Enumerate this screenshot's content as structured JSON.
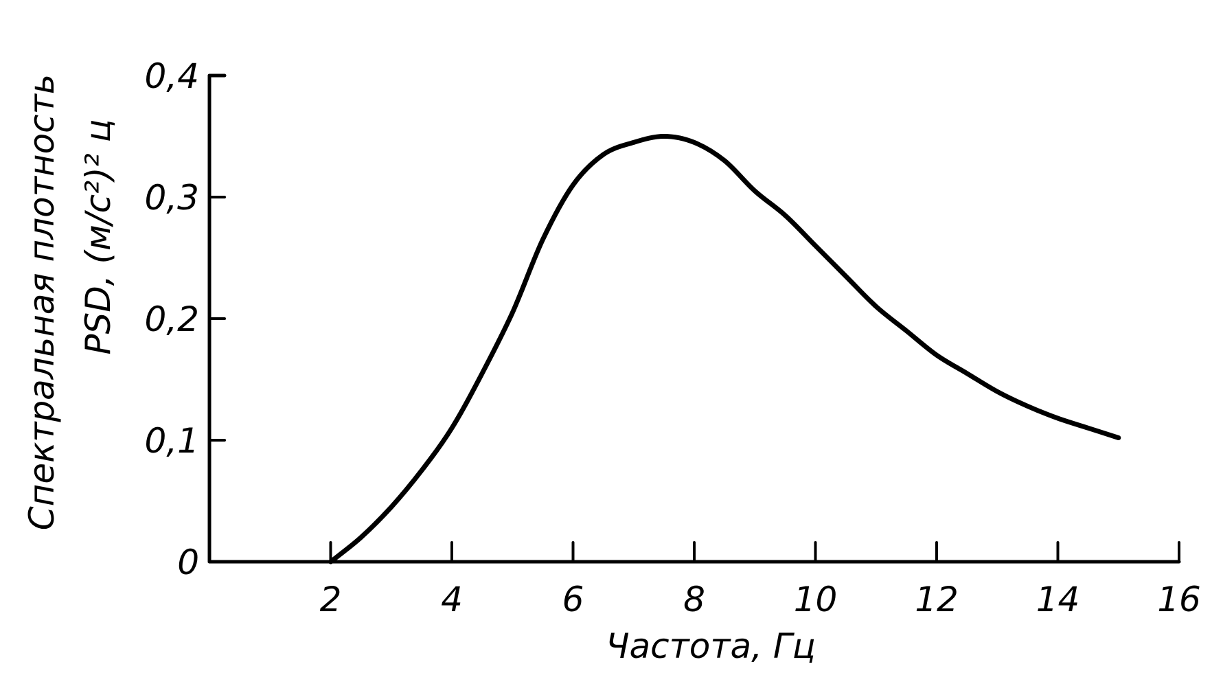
{
  "chart_data": {
    "type": "line",
    "title": "",
    "xlabel": "Частота,  Гц",
    "ylabel_line1": "Спектральная плотность",
    "ylabel_line2": "PSD, (м/с²)² ц",
    "xlim": [
      0,
      16
    ],
    "ylim": [
      0,
      0.4
    ],
    "x_ticks": [
      2,
      4,
      6,
      8,
      10,
      12,
      14,
      16
    ],
    "x_tick_labels": [
      "2",
      "4",
      "6",
      "8",
      "10",
      "12",
      "14",
      "16"
    ],
    "y_ticks": [
      0,
      0.1,
      0.2,
      0.3,
      0.4
    ],
    "y_tick_labels": [
      "0",
      "0,1",
      "0,2",
      "0,3",
      "0,4"
    ],
    "grid": false,
    "series": [
      {
        "x": [
          2,
          2.5,
          3,
          3.5,
          4,
          4.5,
          5,
          5.5,
          6,
          6.5,
          7,
          7.5,
          8,
          8.5,
          9,
          9.5,
          10,
          10.5,
          11,
          11.5,
          12,
          12.5,
          13,
          13.5,
          14,
          14.5,
          15
        ],
        "y": [
          0,
          0.02,
          0.045,
          0.075,
          0.11,
          0.155,
          0.205,
          0.265,
          0.31,
          0.335,
          0.345,
          0.35,
          0.345,
          0.33,
          0.305,
          0.285,
          0.26,
          0.235,
          0.21,
          0.19,
          0.17,
          0.155,
          0.14,
          0.128,
          0.118,
          0.11,
          0.102
        ]
      }
    ]
  }
}
